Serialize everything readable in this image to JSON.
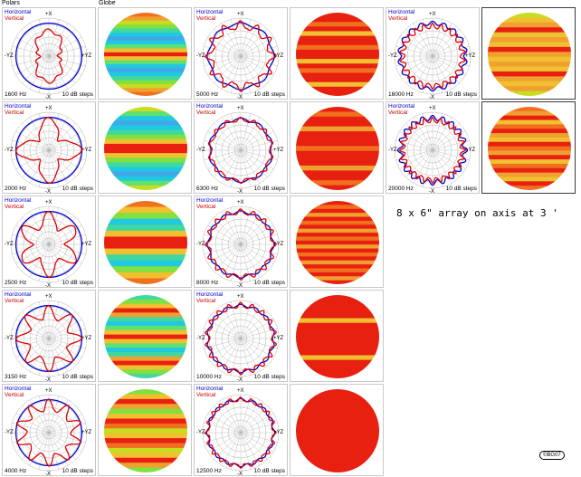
{
  "headers": {
    "polars": "Polars",
    "globe": "Globe"
  },
  "legend": {
    "horizontal": "Horizontal",
    "vertical": "Vertical"
  },
  "steps_label": "10 dB steps",
  "axis_labels": {
    "top": "+X",
    "bottom": "-X",
    "left": "-YZ",
    "right": "+YZ"
  },
  "note": "8 x 6\" array on axis at 3 '",
  "copyright": "©BG07",
  "colors": {
    "horizontal": "#0000cc",
    "vertical": "#dd0000",
    "grid": "#b0b0b0"
  },
  "chart_data": [
    {
      "type": "polar",
      "frequency": "1600 Hz",
      "range_db": [
        -60,
        0
      ],
      "grid_step_db": 10,
      "horizontal": {
        "base": -8,
        "lobes": 0,
        "amp": 0
      },
      "vertical": {
        "base": -32,
        "lobes": 2,
        "amp": 12,
        "ripple_lobes": 10,
        "ripple_amp": 3
      }
    },
    {
      "type": "polar",
      "frequency": "2000 Hz",
      "range_db": [
        -60,
        0
      ],
      "grid_step_db": 10,
      "horizontal": {
        "base": -8,
        "lobes": 0,
        "amp": 0
      },
      "vertical": {
        "base": -24,
        "lobes": 4,
        "amp": 14,
        "ripple_lobes": 12,
        "ripple_amp": 2
      }
    },
    {
      "type": "polar",
      "frequency": "2500 Hz",
      "range_db": [
        -60,
        0
      ],
      "grid_step_db": 10,
      "horizontal": {
        "base": -8,
        "lobes": 0,
        "amp": 0
      },
      "vertical": {
        "base": -22,
        "lobes": 6,
        "amp": 12,
        "ripple_lobes": 14,
        "ripple_amp": 2
      }
    },
    {
      "type": "polar",
      "frequency": "3150 Hz",
      "range_db": [
        -60,
        0
      ],
      "grid_step_db": 10,
      "horizontal": {
        "base": -8,
        "lobes": 0,
        "amp": 0
      },
      "vertical": {
        "base": -20,
        "lobes": 8,
        "amp": 10,
        "ripple_lobes": 16,
        "ripple_amp": 2
      }
    },
    {
      "type": "polar",
      "frequency": "4000 Hz",
      "range_db": [
        -60,
        0
      ],
      "grid_step_db": 10,
      "horizontal": {
        "base": -8,
        "lobes": 0,
        "amp": 0
      },
      "vertical": {
        "base": -18,
        "lobes": 10,
        "amp": 9,
        "ripple_lobes": 20,
        "ripple_amp": 2
      }
    },
    {
      "type": "polar",
      "frequency": "5000 Hz",
      "range_db": [
        -60,
        0
      ],
      "grid_step_db": 10,
      "horizontal": {
        "base": -9,
        "lobes": 8,
        "amp": 2
      },
      "vertical": {
        "base": -12,
        "lobes": 12,
        "amp": 6,
        "ripple_lobes": 24,
        "ripple_amp": 2
      }
    },
    {
      "type": "polar",
      "frequency": "6300 Hz",
      "range_db": [
        -60,
        0
      ],
      "grid_step_db": 10,
      "horizontal": {
        "base": -11,
        "lobes": 10,
        "amp": 2
      },
      "vertical": {
        "base": -12,
        "lobes": 14,
        "amp": 3,
        "ripple_lobes": 28,
        "ripple_amp": 1
      }
    },
    {
      "type": "polar",
      "frequency": "8000 Hz",
      "range_db": [
        -60,
        0
      ],
      "grid_step_db": 10,
      "horizontal": {
        "base": -9,
        "lobes": 12,
        "amp": 2
      },
      "vertical": {
        "base": -9,
        "lobes": 16,
        "amp": 4,
        "ripple_lobes": 32,
        "ripple_amp": 1
      }
    },
    {
      "type": "polar",
      "frequency": "10000 Hz",
      "range_db": [
        -60,
        0
      ],
      "grid_step_db": 10,
      "horizontal": {
        "base": -8,
        "lobes": 14,
        "amp": 2
      },
      "vertical": {
        "base": -8,
        "lobes": 18,
        "amp": 4,
        "ripple_lobes": 36,
        "ripple_amp": 1
      }
    },
    {
      "type": "polar",
      "frequency": "12500 Hz",
      "range_db": [
        -60,
        0
      ],
      "grid_step_db": 10,
      "horizontal": {
        "base": -8,
        "lobes": 16,
        "amp": 2
      },
      "vertical": {
        "base": -8,
        "lobes": 20,
        "amp": 3,
        "ripple_lobes": 40,
        "ripple_amp": 1
      }
    },
    {
      "type": "polar",
      "frequency": "16000 Hz",
      "range_db": [
        -60,
        0
      ],
      "grid_step_db": 10,
      "horizontal": {
        "base": -8,
        "lobes": 18,
        "amp": 3
      },
      "vertical": {
        "base": -13,
        "lobes": 22,
        "amp": 4,
        "ripple_lobes": 44,
        "ripple_amp": 1
      }
    },
    {
      "type": "polar",
      "frequency": "20000 Hz",
      "range_db": [
        -60,
        0
      ],
      "grid_step_db": 10,
      "horizontal": {
        "base": -9,
        "lobes": 20,
        "amp": 4
      },
      "vertical": {
        "base": -13,
        "lobes": 24,
        "amp": 4,
        "ripple_lobes": 48,
        "ripple_amp": 1
      }
    }
  ],
  "globes": [
    {
      "bands": [
        "#f07020",
        "#f0a030",
        "#c8dc20",
        "#80e040",
        "#40d8a0",
        "#20c8e0",
        "#40a8e8",
        "#20c8e0",
        "#60e070",
        "#f0c030",
        "#e82010",
        "#f0c030",
        "#60e070",
        "#20c8e0",
        "#40a8e8",
        "#20c8e0",
        "#40d8a0",
        "#80e040",
        "#c8dc20",
        "#f0a030",
        "#f07020"
      ]
    },
    {
      "bands": [
        "#c8dc20",
        "#60e070",
        "#20c8e0",
        "#40a8e8",
        "#20c8e0",
        "#40d8a0",
        "#80e040",
        "#f0c030",
        "#e82010",
        "#e82010",
        "#f0c030",
        "#80e040",
        "#40d8a0",
        "#20c8e0",
        "#40a8e8",
        "#20c8e0",
        "#60e070",
        "#c8dc20"
      ]
    },
    {
      "bands": [
        "#f07020",
        "#f0c030",
        "#80e040",
        "#20c8e0",
        "#40d8a0",
        "#f0c030",
        "#e82010",
        "#e82010",
        "#f0c030",
        "#40d8a0",
        "#20c8e0",
        "#80e040",
        "#f0c030",
        "#f07020"
      ]
    },
    {
      "bands": [
        "#40d8a0",
        "#80e040",
        "#f0c030",
        "#e82010",
        "#f0a030",
        "#40d8a0",
        "#20c8e0",
        "#60e070",
        "#f0c030",
        "#e82010",
        "#f0c030",
        "#60e070",
        "#20c8e0",
        "#40d8a0",
        "#f0a030",
        "#e82010",
        "#f0c030",
        "#80e040",
        "#40d8a0"
      ]
    },
    {
      "bands": [
        "#80e040",
        "#f0c030",
        "#e82010",
        "#f0a030",
        "#80e040",
        "#f0c030",
        "#e82010",
        "#f07020",
        "#c8dc20",
        "#f0c030",
        "#e82010",
        "#f07020",
        "#c8dc20",
        "#f0c030",
        "#e82010",
        "#f0a030",
        "#80e040"
      ]
    },
    {
      "bands": [
        "#e82010",
        "#e82010",
        "#f07020",
        "#e82010",
        "#f0c030",
        "#e82010",
        "#e82010",
        "#f07020",
        "#e82010",
        "#e82010",
        "#f0c030",
        "#e82010",
        "#f07020",
        "#e82010",
        "#e82010",
        "#f0c030",
        "#e82010",
        "#e82010"
      ]
    },
    {
      "bands": [
        "#e82010",
        "#f07020",
        "#e82010",
        "#e82010",
        "#f0a030",
        "#e82010",
        "#e82010",
        "#e82010",
        "#f07020",
        "#e82010",
        "#e82010",
        "#e82010",
        "#f0a030",
        "#e82010",
        "#e82010",
        "#f07020",
        "#e82010"
      ]
    },
    {
      "bands": [
        "#e82010",
        "#f07020",
        "#e82010",
        "#f0a030",
        "#e82010",
        "#f07020",
        "#e82010",
        "#f0a030",
        "#e82010",
        "#f07020",
        "#e82010",
        "#f0a030",
        "#e82010",
        "#f07020",
        "#e82010",
        "#f0a030",
        "#e82010",
        "#f07020",
        "#e82010",
        "#f0a030",
        "#e82010"
      ]
    },
    {
      "bands": [
        "#e82010",
        "#e82010",
        "#e82010",
        "#e82010",
        "#e82010",
        "#f0c030",
        "#e82010",
        "#e82010",
        "#e82010",
        "#e82010",
        "#e82010",
        "#e82010",
        "#e82010",
        "#f0c030",
        "#e82010",
        "#e82010",
        "#e82010",
        "#e82010"
      ]
    },
    {
      "bands": [
        "#e82010",
        "#e82010",
        "#e82010",
        "#e82010",
        "#e82010",
        "#e82010",
        "#e82010",
        "#e82010",
        "#e82010",
        "#e82010",
        "#e82010",
        "#e82010"
      ]
    },
    {
      "bands": [
        "#c8dc20",
        "#f0c030",
        "#f0a030",
        "#e82010",
        "#f0c030",
        "#f0a030",
        "#f0c030",
        "#e82010",
        "#f0a030",
        "#f0c030",
        "#f0a030",
        "#f0c030",
        "#e82010",
        "#f0a030",
        "#f0c030",
        "#f0a030",
        "#c8dc20"
      ]
    },
    {
      "bands": [
        "#f07020",
        "#f0a030",
        "#e82010",
        "#f0c030",
        "#f07020",
        "#e82010",
        "#f0a030",
        "#f0c030",
        "#e82010",
        "#f07020",
        "#f0a030",
        "#e82010",
        "#f0c030",
        "#f07020",
        "#e82010",
        "#f0a030",
        "#f0c030",
        "#e82010",
        "#f07020"
      ]
    }
  ]
}
